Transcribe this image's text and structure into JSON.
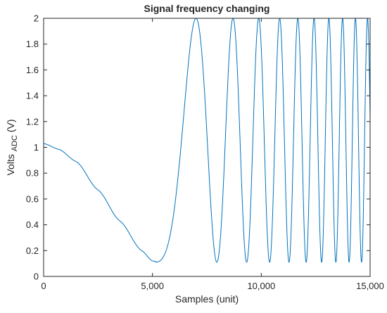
{
  "chart_data": {
    "type": "line",
    "title": "Signal frequency changing",
    "xlabel": "Samples (unit)",
    "ylabel": {
      "main": "Volts",
      "subscript": "ADC",
      "suffix": "(V)"
    },
    "xlim": [
      0,
      15000
    ],
    "ylim": [
      0,
      2
    ],
    "xticks": [
      0,
      5000,
      10000,
      15000
    ],
    "xtick_labels": [
      "0",
      "5,000",
      "10,000",
      "15,000"
    ],
    "yticks": [
      0,
      0.2,
      0.4,
      0.6,
      0.8,
      1,
      1.2,
      1.4,
      1.6,
      1.8,
      2
    ],
    "ytick_labels": [
      "0",
      "0.2",
      "0.4",
      "0.6",
      "0.8",
      "1",
      "1.2",
      "1.4",
      "1.6",
      "1.8",
      "2"
    ],
    "grid": false,
    "series": [
      {
        "color": "#0072BD",
        "description_points": {
          "x": [
            0,
            700,
            1500,
            2500,
            3500,
            4500,
            5000,
            5500,
            7000,
            8000,
            8700,
            9400,
            9850,
            10300
          ],
          "y": [
            1.03,
            0.98,
            0.89,
            0.67,
            0.43,
            0.2,
            0.12,
            0.17,
            2.0,
            0.1,
            2.0,
            0.1,
            2.0,
            0.1
          ]
        },
        "behavior": "chirp: slow decay to minimum near 5000, then oscillation between 0.1 and 2 with rapidly increasing frequency up to 15000"
      }
    ]
  }
}
